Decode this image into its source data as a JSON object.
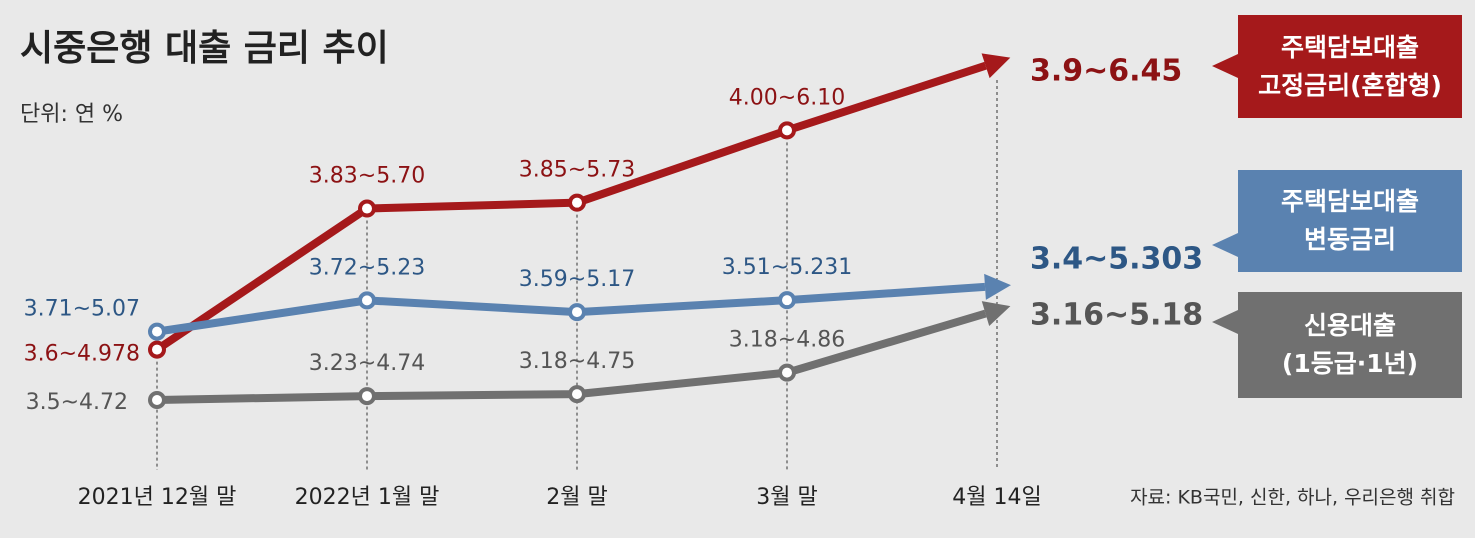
{
  "chart_data": {
    "type": "line",
    "title": "시중은행 대출 금리 추이",
    "subtitle": "단위: 연 %",
    "source": "자료: KB국민, 신한, 하나, 우리은행 취합",
    "categories": [
      "2021년 12월 말",
      "2022년 1월 말",
      "2월 말",
      "3월 말",
      "4월 14일"
    ],
    "series": [
      {
        "name": "주택담보대출\n고정금리(혼합형)",
        "color": "#a5191b",
        "label_color": "#8c1214",
        "lows": [
          3.6,
          3.83,
          3.85,
          4.0,
          3.9
        ],
        "values": [
          4.978,
          5.7,
          5.73,
          6.1,
          6.45
        ],
        "value_labels": [
          "3.6~4.978",
          "3.83~5.70",
          "3.85~5.73",
          "4.00~6.10",
          "3.9~6.45"
        ]
      },
      {
        "name": "주택담보대출\n변동금리",
        "color": "#5a82b0",
        "label_color": "#2d5785",
        "lows": [
          3.71,
          3.72,
          3.59,
          3.51,
          3.4
        ],
        "values": [
          5.07,
          5.23,
          5.17,
          5.231,
          5.303
        ],
        "value_labels": [
          "3.71~5.07",
          "3.72~5.23",
          "3.59~5.17",
          "3.51~5.231",
          "3.4~5.303"
        ]
      },
      {
        "name": "신용대출\n(1등급·1년)",
        "color": "#707070",
        "label_color": "#555555",
        "lows": [
          3.5,
          3.23,
          3.18,
          3.18,
          3.16
        ],
        "values": [
          4.72,
          4.74,
          4.75,
          4.86,
          5.18
        ],
        "value_labels": [
          "3.5~4.72",
          "3.23~4.74",
          "3.18~4.75",
          "3.18~4.86",
          "3.16~5.18"
        ]
      }
    ]
  }
}
